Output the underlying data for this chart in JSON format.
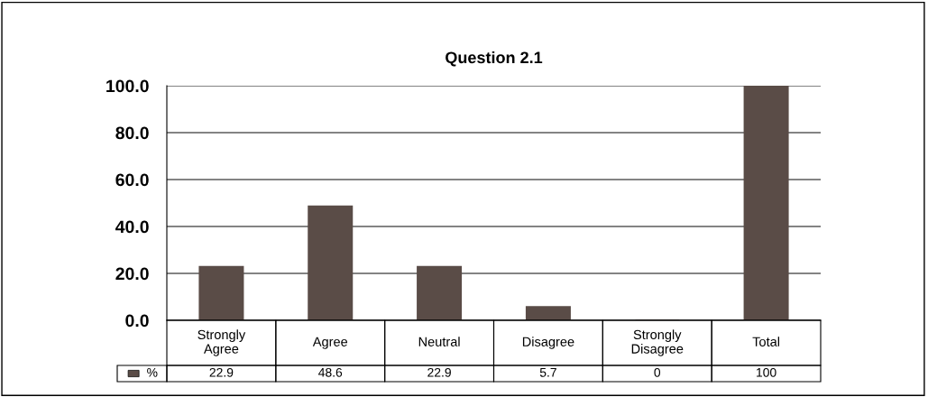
{
  "chart_data": {
    "type": "bar",
    "title": "Question 2.1",
    "categories": [
      "Strongly\nAgree",
      "Agree",
      "Neutral",
      "Disagree",
      "Strongly\nDisagree",
      "Total"
    ],
    "series": [
      {
        "name": "%",
        "color": "#5a4c47",
        "values": [
          22.9,
          48.6,
          22.9,
          5.7,
          0,
          100
        ]
      }
    ],
    "ylim": [
      0,
      100
    ],
    "yticks": [
      {
        "value": 0,
        "label": "0.0"
      },
      {
        "value": 20,
        "label": "20.0"
      },
      {
        "value": 40,
        "label": "40.0"
      },
      {
        "value": 60,
        "label": "60.0"
      },
      {
        "value": 80,
        "label": "80.0"
      },
      {
        "value": 100,
        "label": "100.0"
      }
    ],
    "grid": "y",
    "data_labels": true
  }
}
